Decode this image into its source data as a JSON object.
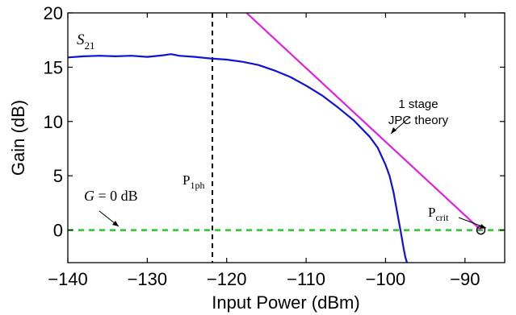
{
  "colors": {
    "s21_curve": "#1010d8",
    "theory_line": "#e020e0",
    "zero_gain_line": "#22cc22",
    "p1ph_line": "#000000"
  },
  "chart_data": {
    "type": "line",
    "xlabel": "Input Power (dBm)",
    "ylabel": "Gain (dB)",
    "xlim": [
      -140,
      -85
    ],
    "ylim": [
      -3,
      20
    ],
    "xticks": [
      -140,
      -130,
      -120,
      -110,
      -100,
      -90
    ],
    "yticks": [
      0,
      5,
      10,
      15,
      20
    ],
    "grid": false,
    "series": [
      {
        "name": "S21",
        "x": [
          -140,
          -138,
          -136,
          -134,
          -132,
          -130,
          -128,
          -127,
          -126,
          -124,
          -122,
          -120,
          -118,
          -116,
          -114,
          -112,
          -110,
          -108,
          -106,
          -104,
          -102,
          -101,
          -100,
          -99.5,
          -99,
          -98.5,
          -98,
          -97.7,
          -97.5,
          -97.3
        ],
        "y": [
          15.9,
          16.0,
          16.05,
          16.0,
          16.05,
          15.95,
          16.1,
          16.2,
          16.05,
          15.95,
          15.8,
          15.7,
          15.5,
          15.2,
          14.7,
          14.1,
          13.3,
          12.4,
          11.3,
          10.1,
          8.6,
          7.6,
          6.0,
          5.0,
          3.5,
          1.5,
          -0.5,
          -1.8,
          -2.5,
          -3.0
        ]
      },
      {
        "name": "1 stage JPC theory",
        "x": [
          -117.5,
          -88
        ],
        "y": [
          20,
          0
        ]
      },
      {
        "name": "G = 0 dB",
        "x": [
          -140,
          -85
        ],
        "y": [
          0,
          0
        ]
      }
    ],
    "vertical_lines": [
      {
        "label": "P1ph",
        "x": -121.8
      }
    ],
    "markers": [
      {
        "label": "Pcrit",
        "x": -88,
        "y": 0
      }
    ],
    "annotations": {
      "s21_symbol": "S",
      "s21_sub": "21",
      "theory_line1": "1 stage",
      "theory_line2": "JPC theory",
      "g0_italic": "G",
      "g0_rest": " = 0 dB",
      "p1ph_main": "P",
      "p1ph_sub": "1ph",
      "pcrit_main": "P",
      "pcrit_sub": "crit"
    }
  }
}
